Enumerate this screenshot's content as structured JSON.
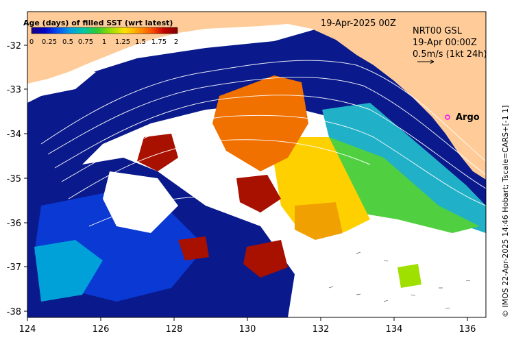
{
  "map": {
    "colorbar_title": "Age (days) of filled SST (wrt latest)",
    "colorbar_ticks": [
      "0",
      "0.25",
      "0.5",
      "0.75",
      "1",
      "1.25",
      "1.5",
      "1.75",
      "2"
    ],
    "colorbar_colors": [
      "#1a0080",
      "#0000c8",
      "#0050f0",
      "#00a0e0",
      "#00c8a0",
      "#30c830",
      "#a0e000",
      "#ffe000",
      "#ffa000",
      "#ff5000",
      "#c00000",
      "#800000"
    ],
    "date_label": "19-Apr-2025 00Z",
    "info_lines": [
      "NRT00 GSL",
      "19-Apr 00:00Z",
      "0.5m/s (1kt 24h)"
    ],
    "argo_label": "Argo",
    "credit": "© IMOS 22-Apr-2025 14:46 Hobart; Tscale=CARS+[-1 1]",
    "x_ticks": [
      "124",
      "126",
      "128",
      "130",
      "132",
      "134",
      "136"
    ],
    "y_ticks": [
      "-32",
      "-33",
      "-34",
      "-35",
      "-36",
      "-37",
      "-38"
    ],
    "colors": {
      "land": "#ffcc99",
      "nodata": "#ffffff",
      "navy": "#0a1a8c",
      "argo": "#ff00ff"
    }
  }
}
